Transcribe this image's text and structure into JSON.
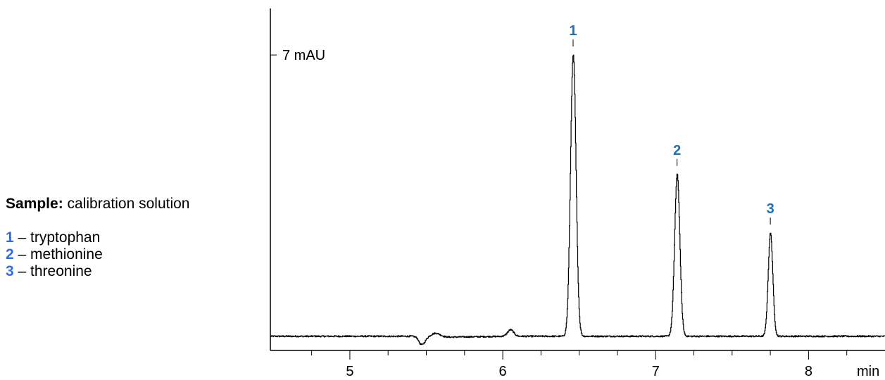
{
  "legend": {
    "sample_label": "Sample:",
    "sample_value": "calibration solution",
    "peaks": [
      {
        "num": "1",
        "sep": " – ",
        "name": "tryptophan"
      },
      {
        "num": "2",
        "sep": " – ",
        "name": "methionine"
      },
      {
        "num": "3",
        "sep": " – ",
        "name": "threonine"
      }
    ]
  },
  "chart_data": {
    "type": "line",
    "xlabel": "min",
    "ylabel": "",
    "x_tick_labels": [
      "5",
      "6",
      "7",
      "8"
    ],
    "x_major_ticks": [
      5,
      6,
      7,
      8
    ],
    "x_minor_ticks": [
      4.75,
      5.25,
      5.5,
      5.75,
      6.25,
      6.5,
      6.75,
      7.25,
      7.5,
      7.75,
      8.25
    ],
    "xlim": [
      4.48,
      8.5
    ],
    "ylim": [
      -0.3,
      8.15
    ],
    "y_scale_label": "7 mAU",
    "y_scale_value": 7,
    "grid": false,
    "baseline_mAU": 0.05,
    "peak_annotation_color": "#1f6fb8",
    "legend_number_color": "#2e6de8",
    "trace_color": "#000000",
    "peaks": [
      {
        "label": "1",
        "compound": "tryptophan",
        "retention_time_min": 6.46,
        "height_mAU": 6.95,
        "width_min": 0.018
      },
      {
        "label": "2",
        "compound": "methionine",
        "retention_time_min": 7.14,
        "height_mAU": 4.0,
        "width_min": 0.017
      },
      {
        "label": "3",
        "compound": "threonine",
        "retention_time_min": 7.75,
        "height_mAU": 2.55,
        "width_min": 0.015
      }
    ],
    "minor_features": [
      {
        "retention_time_min": 5.47,
        "height_mAU": -0.18,
        "width_min": 0.02
      },
      {
        "retention_time_min": 5.56,
        "height_mAU": 0.1,
        "width_min": 0.03
      },
      {
        "retention_time_min": 6.05,
        "height_mAU": 0.16,
        "width_min": 0.02
      }
    ]
  }
}
